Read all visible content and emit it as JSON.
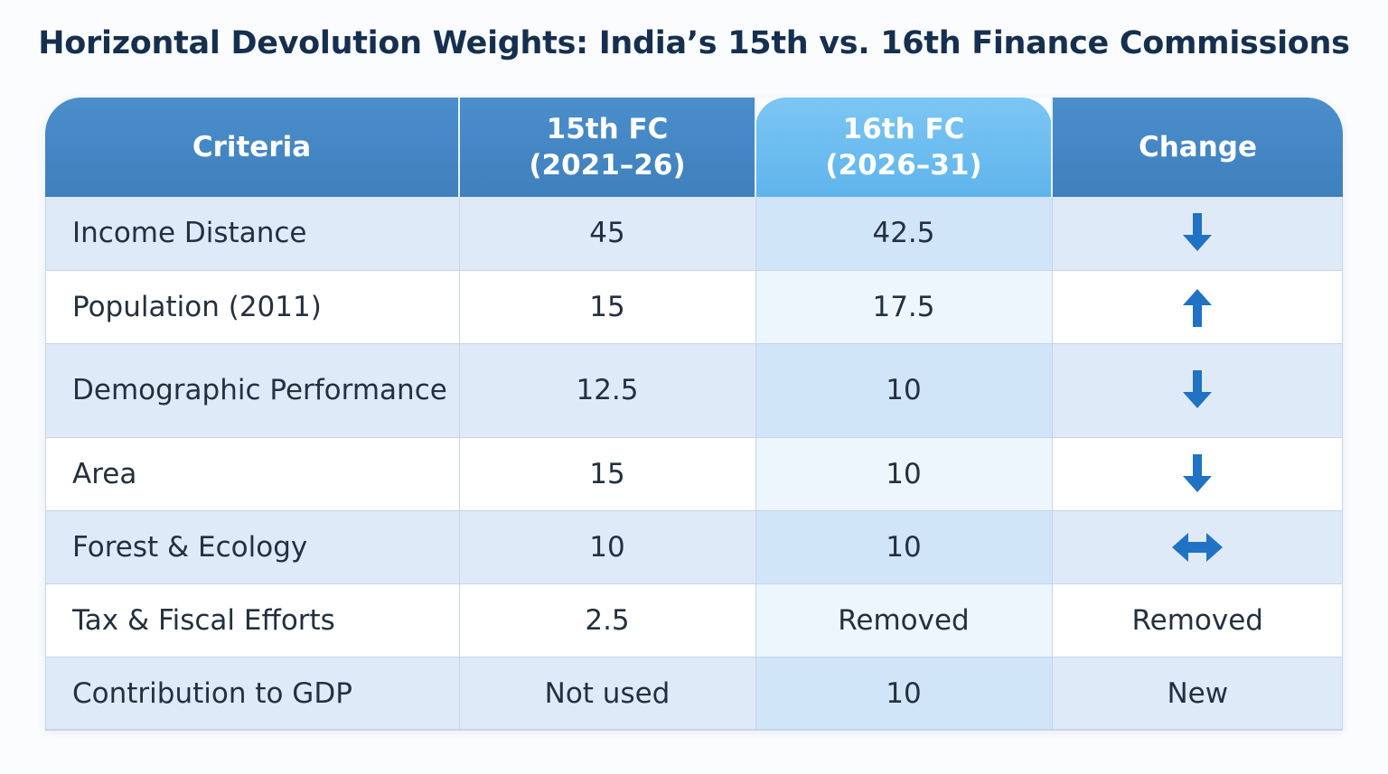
{
  "title": "Horizontal Devolution Weights: India’s 15th vs. 16th Finance Commissions",
  "table": {
    "headers": [
      {
        "line1": "Criteria",
        "line2": ""
      },
      {
        "line1": "15th FC",
        "line2": "(2021–26)"
      },
      {
        "line1": "16th FC",
        "line2": "(2026–31)"
      },
      {
        "line1": "Change",
        "line2": ""
      }
    ],
    "rows": [
      {
        "criteria": "Income Distance",
        "fc15": "45",
        "fc16": "42.5",
        "change_icon": "arrow-down-icon",
        "change_text": ""
      },
      {
        "criteria": "Population (2011)",
        "fc15": "15",
        "fc16": "17.5",
        "change_icon": "arrow-up-icon",
        "change_text": ""
      },
      {
        "criteria": "Demographic Performance",
        "fc15": "12.5",
        "fc16": "10",
        "change_icon": "arrow-down-icon",
        "change_text": ""
      },
      {
        "criteria": "Area",
        "fc15": "15",
        "fc16": "10",
        "change_icon": "arrow-down-icon",
        "change_text": ""
      },
      {
        "criteria": "Forest & Ecology",
        "fc15": "10",
        "fc16": "10",
        "change_icon": "arrow-left-right-icon",
        "change_text": ""
      },
      {
        "criteria": "Tax & Fiscal Efforts",
        "fc15": "2.5",
        "fc16": "Removed",
        "change_icon": "",
        "change_text": "Removed"
      },
      {
        "criteria": "Contribution to GDP",
        "fc15": "Not used",
        "fc16": "10",
        "change_icon": "",
        "change_text": "New"
      }
    ]
  },
  "colors": {
    "header_blue": "#4288c6",
    "header_highlight": "#6dbdf0",
    "arrow_blue": "#1f72c4",
    "title": "#15304f"
  }
}
